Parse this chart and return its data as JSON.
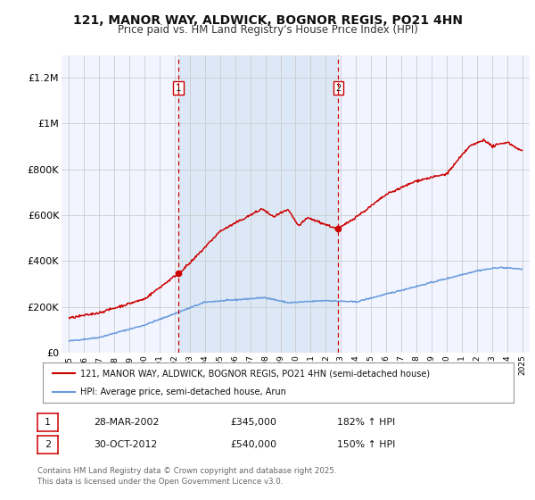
{
  "title": "121, MANOR WAY, ALDWICK, BOGNOR REGIS, PO21 4HN",
  "subtitle": "Price paid vs. HM Land Registry's House Price Index (HPI)",
  "background_color": "#ffffff",
  "plot_bg_color": "#f2f5ff",
  "grid_color": "#cccccc",
  "sale1_date": 2002.24,
  "sale1_price": 345000,
  "sale2_date": 2012.83,
  "sale2_price": 540000,
  "hpi_color": "#6699dd",
  "price_color": "#cc0000",
  "shade_color": "#dce8f5",
  "vline_color": "#cc0000",
  "legend1": "121, MANOR WAY, ALDWICK, BOGNOR REGIS, PO21 4HN (semi-detached house)",
  "legend2": "HPI: Average price, semi-detached house, Arun",
  "table_row1": [
    "1",
    "28-MAR-2002",
    "£345,000",
    "182% ↑ HPI"
  ],
  "table_row2": [
    "2",
    "30-OCT-2012",
    "£540,000",
    "150% ↑ HPI"
  ],
  "footnote": "Contains HM Land Registry data © Crown copyright and database right 2025.\nThis data is licensed under the Open Government Licence v3.0.",
  "ylim_max": 1300000,
  "xlim_min": 1994.5,
  "xlim_max": 2025.5,
  "yticks": [
    0,
    200000,
    400000,
    600000,
    800000,
    1000000,
    1200000
  ],
  "ytick_labels": [
    "£0",
    "£200K",
    "£400K",
    "£600K",
    "£800K",
    "£1M",
    "£1.2M"
  ]
}
